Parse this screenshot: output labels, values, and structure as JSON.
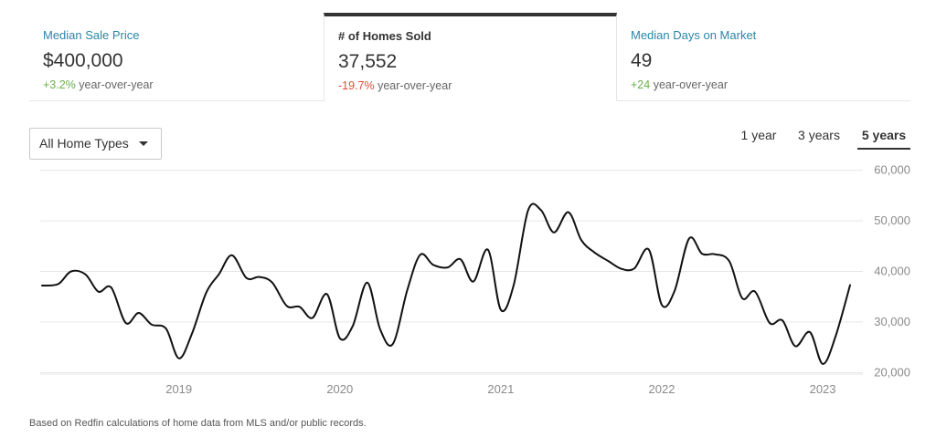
{
  "stats": [
    {
      "label": "Median Sale Price",
      "value": "$400,000",
      "change": "+3.2%",
      "suffix": "year-over-year",
      "direction": "positive"
    },
    {
      "label": "# of Homes Sold",
      "value": "37,552",
      "change": "-19.7%",
      "suffix": "year-over-year",
      "direction": "negative"
    },
    {
      "label": "Median Days on Market",
      "value": "49",
      "change": "+24",
      "suffix": "year-over-year",
      "direction": "positive"
    }
  ],
  "filter": {
    "selected": "All Home Types"
  },
  "ranges": [
    "1 year",
    "3 years",
    "5 years"
  ],
  "active_range": "5 years",
  "footnote": "Based on Redfin calculations of home data from MLS and/or public records.",
  "colors": {
    "accent_label": "#2a86a6",
    "positive": "#6ab04c",
    "negative": "#e04a3b",
    "line": "#111111"
  },
  "chart_data": {
    "type": "line",
    "xlim": [
      2018.15,
      2023.17
    ],
    "ylim": [
      17000,
      63000
    ],
    "yticks": [
      20000,
      30000,
      40000,
      50000,
      60000
    ],
    "ytick_labels": [
      "20,000",
      "30,000",
      "40,000",
      "50,000",
      "60,000"
    ],
    "xticks": [
      2019,
      2020,
      2021,
      2022,
      2023
    ],
    "xtick_labels": [
      "2019",
      "2020",
      "2021",
      "2022",
      "2023"
    ],
    "grid": true,
    "series": [
      {
        "x": [
          2018.15,
          2018.25,
          2018.33,
          2018.42,
          2018.5,
          2018.58,
          2018.67,
          2018.75,
          2018.83,
          2018.92,
          2019.0,
          2019.08,
          2019.17,
          2019.25,
          2019.33,
          2019.42,
          2019.5,
          2019.58,
          2019.67,
          2019.75,
          2019.83,
          2019.92,
          2020.0,
          2020.08,
          2020.17,
          2020.25,
          2020.33,
          2020.42,
          2020.5,
          2020.58,
          2020.67,
          2020.75,
          2020.83,
          2020.92,
          2021.0,
          2021.08,
          2021.17,
          2021.25,
          2021.33,
          2021.42,
          2021.5,
          2021.58,
          2021.67,
          2021.75,
          2021.83,
          2021.92,
          2022.0,
          2022.08,
          2022.17,
          2022.25,
          2022.33,
          2022.42,
          2022.5,
          2022.58,
          2022.67,
          2022.75,
          2022.83,
          2022.92,
          2023.0,
          2023.08,
          2023.17
        ],
        "values": [
          37200,
          37500,
          40000,
          39400,
          36000,
          36800,
          29800,
          31800,
          29500,
          28700,
          22800,
          27600,
          35800,
          39500,
          43200,
          38700,
          38900,
          37800,
          33200,
          33000,
          30800,
          35500,
          26800,
          29200,
          37800,
          28600,
          25700,
          36400,
          43300,
          41300,
          40800,
          42400,
          38000,
          44300,
          32400,
          37300,
          52100,
          52100,
          47700,
          51700,
          46200,
          43800,
          42000,
          40500,
          40600,
          44300,
          33400,
          36200,
          46500,
          43500,
          43400,
          42000,
          34700,
          36000,
          29800,
          30300,
          25200,
          28000,
          21700,
          27200,
          37300
        ]
      }
    ]
  }
}
